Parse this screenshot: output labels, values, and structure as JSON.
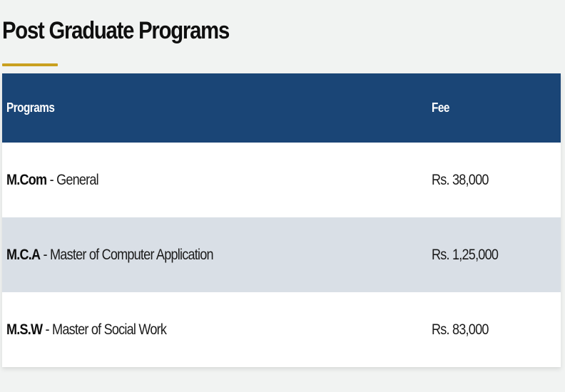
{
  "section": {
    "title": "Post Graduate Programs"
  },
  "colors": {
    "header_bg": "#1a4576",
    "accent_underline": "#c9a020",
    "alt_row_bg": "#d9dfe6",
    "page_bg": "#f1f3f2"
  },
  "table": {
    "headers": {
      "programs": "Programs",
      "fee": "Fee"
    },
    "rows": [
      {
        "code": "M.Com",
        "separator": " - ",
        "name": "General",
        "fee": "Rs. 38,000"
      },
      {
        "code": "M.C.A",
        "separator": " - ",
        "name": "Master of Computer Application",
        "fee": "Rs. 1,25,000"
      },
      {
        "code": "M.S.W",
        "separator": " - ",
        "name": "Master of Social Work",
        "fee": "Rs. 83,000"
      }
    ]
  }
}
